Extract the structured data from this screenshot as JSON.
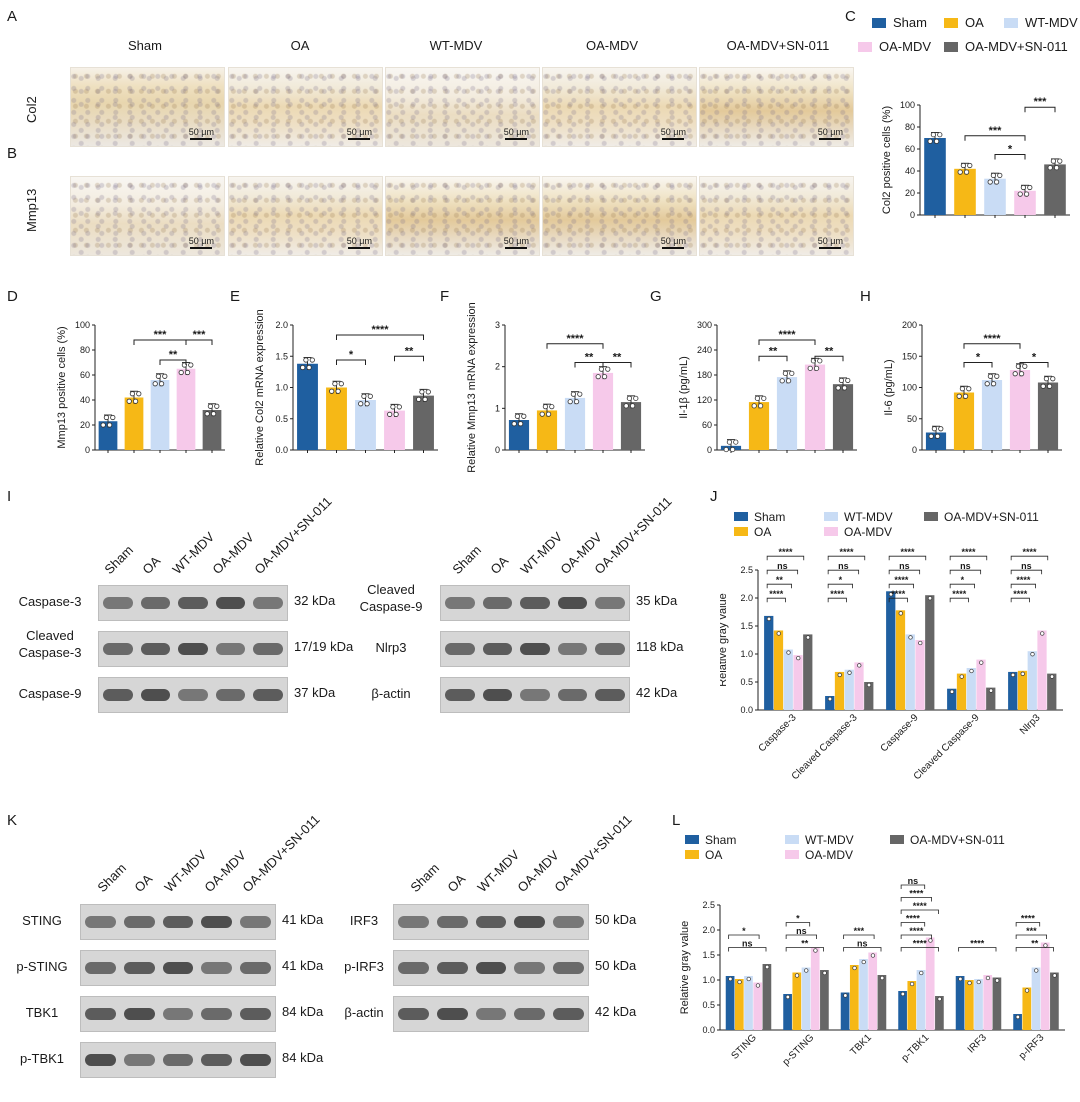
{
  "colors": {
    "sham": "#1f5fa0",
    "oa": "#f6b816",
    "wt_mdv": "#c9dcf5",
    "oa_mdv": "#f6c9ea",
    "oa_mdv_sn": "#666666"
  },
  "panel_letters": [
    "A",
    "B",
    "C",
    "D",
    "E",
    "F",
    "G",
    "H",
    "I",
    "J",
    "K",
    "L"
  ],
  "groups": [
    "Sham",
    "OA",
    "WT-MDV",
    "OA-MDV",
    "OA-MDV+SN-011"
  ],
  "ihc": {
    "rows": [
      "Col2",
      "Mmp13"
    ],
    "scale_label": "50 μm"
  },
  "blots_I_left": [
    {
      "label": "Caspase-3",
      "size": "32 kDa"
    },
    {
      "label": "Cleaved\nCaspase-3",
      "size": "17/19 kDa"
    },
    {
      "label": "Caspase-9",
      "size": "37 kDa"
    }
  ],
  "blots_I_right": [
    {
      "label": "Cleaved\nCaspase-9",
      "size": "35 kDa"
    },
    {
      "label": "Nlrp3",
      "size": "118 kDa"
    },
    {
      "label": "β-actin",
      "size": "42 kDa"
    }
  ],
  "blots_K_left": [
    {
      "label": "STING",
      "size": "41 kDa"
    },
    {
      "label": "p-STING",
      "size": "41 kDa"
    },
    {
      "label": "TBK1",
      "size": "84 kDa"
    },
    {
      "label": "p-TBK1",
      "size": "84 kDa"
    }
  ],
  "blots_K_right": [
    {
      "label": "IRF3",
      "size": "50 kDa"
    },
    {
      "label": "p-IRF3",
      "size": "50 kDa"
    },
    {
      "label": "β-actin",
      "size": "42 kDa"
    }
  ],
  "chart_data": [
    {
      "panel": "C",
      "type": "bar",
      "ylabel": "Col2  positive cells (%)",
      "ylim": [
        0,
        100
      ],
      "yticks": [
        0,
        20,
        40,
        60,
        80,
        100
      ],
      "categories": [
        "Sham",
        "OA",
        "WT-MDV",
        "OA-MDV",
        "OA-MDV+SN-011"
      ],
      "values": [
        70,
        42,
        33,
        22,
        46
      ],
      "sig": [
        "***",
        "*",
        "***"
      ]
    },
    {
      "panel": "D",
      "type": "bar",
      "ylabel": "Mmp13 positive cells (%)",
      "ylim": [
        0,
        100
      ],
      "yticks": [
        0,
        20,
        40,
        60,
        80,
        100
      ],
      "categories": [
        "Sham",
        "OA",
        "WT-MDV",
        "OA-MDV",
        "OA-MDV+SN-011"
      ],
      "values": [
        23,
        42,
        56,
        65,
        32
      ],
      "sig": [
        "***",
        "**",
        "***"
      ]
    },
    {
      "panel": "E",
      "type": "bar",
      "ylabel": "Relative Col2 mRNA expression",
      "ylim": [
        0,
        2.0
      ],
      "yticks": [
        "0.0",
        "0.5",
        "1.0",
        "1.5",
        "2.0"
      ],
      "categories": [
        "Sham",
        "OA",
        "WT-MDV",
        "OA-MDV",
        "OA-MDV+SN-011"
      ],
      "values": [
        1.38,
        1.0,
        0.8,
        0.63,
        0.87
      ],
      "sig": [
        "****",
        "*",
        "**"
      ]
    },
    {
      "panel": "F",
      "type": "bar",
      "ylabel": "Relative Mmp13 mRNA expression",
      "ylim": [
        0,
        3
      ],
      "yticks": [
        "0",
        "1",
        "2",
        "3"
      ],
      "categories": [
        "Sham",
        "OA",
        "WT-MDV",
        "OA-MDV",
        "OA-MDV+SN-011"
      ],
      "values": [
        0.72,
        0.95,
        1.25,
        1.85,
        1.15
      ],
      "sig": [
        "****",
        "**",
        "**"
      ]
    },
    {
      "panel": "G",
      "type": "bar",
      "ylabel": "Il-1β (pg/mL)",
      "ylim": [
        0,
        300
      ],
      "yticks": [
        "0",
        "60",
        "120",
        "180",
        "240",
        "300"
      ],
      "categories": [
        "Sham",
        "OA",
        "WT-MDV",
        "OA-MDV",
        "OA-MDV+SN-011"
      ],
      "values": [
        10,
        115,
        175,
        205,
        158
      ],
      "sig": [
        "****",
        "**",
        "**"
      ]
    },
    {
      "panel": "H",
      "type": "bar",
      "ylabel": "Il-6 (pg/mL)",
      "ylim": [
        0,
        200
      ],
      "yticks": [
        "0",
        "50",
        "100",
        "150",
        "200"
      ],
      "categories": [
        "Sham",
        "OA",
        "WT-MDV",
        "OA-MDV",
        "OA-MDV+SN-011"
      ],
      "values": [
        28,
        92,
        112,
        128,
        108
      ],
      "sig": [
        "****",
        "*",
        "*"
      ]
    },
    {
      "panel": "J",
      "type": "bar",
      "ylabel": "Relative gray value",
      "ylim": [
        0,
        2.5
      ],
      "yticks": [
        "0.0",
        "0.5",
        "1.0",
        "1.5",
        "2.0",
        "2.5"
      ],
      "categories": [
        "Caspase-3",
        "Cleaved  Caspase-3",
        "Caspase-9",
        "Cleaved Caspase-9",
        "Nlrp3"
      ],
      "series": [
        {
          "name": "Sham",
          "values": [
            1.68,
            0.25,
            2.12,
            0.38,
            0.68
          ]
        },
        {
          "name": "OA",
          "values": [
            1.42,
            0.68,
            1.78,
            0.65,
            0.7
          ]
        },
        {
          "name": "WT-MDV",
          "values": [
            1.08,
            0.72,
            1.35,
            0.75,
            1.05
          ]
        },
        {
          "name": "OA-MDV",
          "values": [
            0.98,
            0.85,
            1.25,
            0.9,
            1.42
          ]
        },
        {
          "name": "OA-MDV+SN-011",
          "values": [
            1.35,
            0.5,
            2.05,
            0.4,
            0.65
          ]
        }
      ],
      "sig": [
        "****",
        "ns",
        "**",
        "****",
        "****",
        "ns",
        "*",
        "****",
        "****",
        "ns",
        "****",
        "****",
        "****",
        "ns",
        "*",
        "****",
        "****",
        "ns",
        "****",
        "****"
      ]
    },
    {
      "panel": "L",
      "type": "bar",
      "ylabel": "Relative gray value",
      "ylim": [
        0,
        2.5
      ],
      "yticks": [
        "0.0",
        "0.5",
        "1.0",
        "1.5",
        "2.0",
        "2.5"
      ],
      "categories": [
        "STING",
        "p-STING",
        "TBK1",
        "p-TBK1",
        "IRF3",
        "p-IRF3"
      ],
      "series": [
        {
          "name": "Sham",
          "values": [
            1.08,
            0.72,
            0.75,
            0.78,
            1.08,
            0.32
          ]
        },
        {
          "name": "OA",
          "values": [
            1.02,
            1.15,
            1.3,
            0.98,
            1.0,
            0.85
          ]
        },
        {
          "name": "WT-MDV",
          "values": [
            1.08,
            1.25,
            1.42,
            1.2,
            1.02,
            1.25
          ]
        },
        {
          "name": "OA-MDV",
          "values": [
            0.95,
            1.65,
            1.55,
            1.85,
            1.1,
            1.75
          ]
        },
        {
          "name": "OA-MDV+SN-011",
          "values": [
            1.32,
            1.2,
            1.1,
            0.68,
            1.05,
            1.15
          ]
        }
      ],
      "sig": [
        "ns",
        "*",
        "**",
        "ns",
        "*",
        "ns",
        "***",
        "****",
        "****",
        "****",
        "****",
        "****",
        "ns",
        "****",
        "**",
        "***",
        "****"
      ]
    }
  ]
}
